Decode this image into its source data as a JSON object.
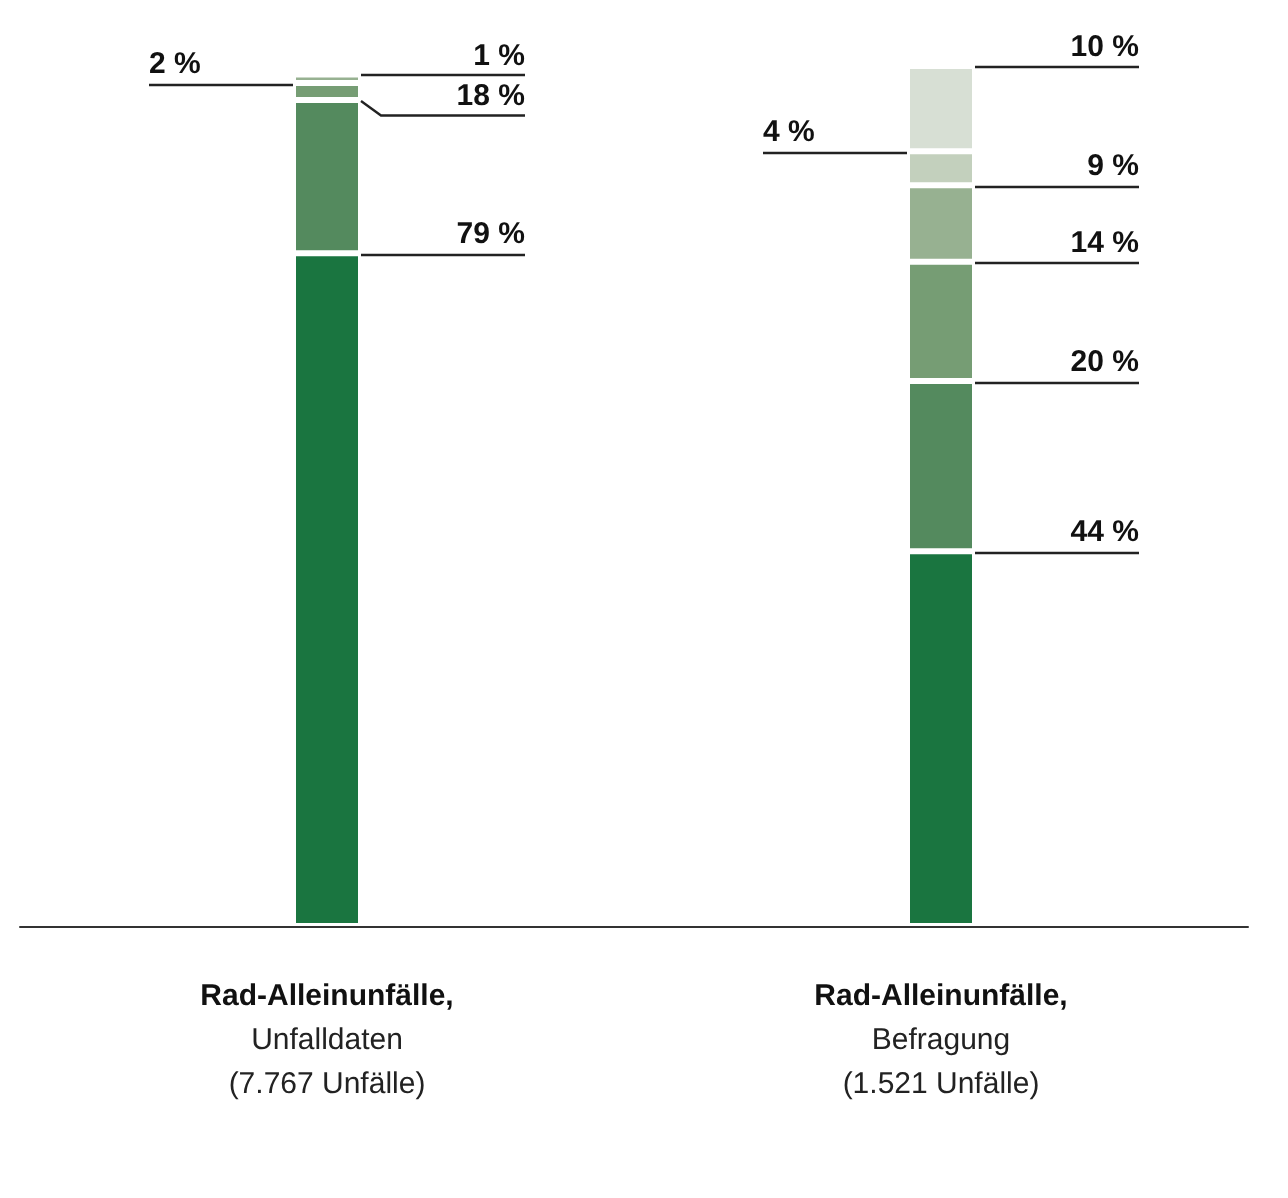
{
  "chart_data": {
    "type": "bar",
    "stacked": true,
    "categories": [
      "Rad-Alleinunfälle,\nUnfalldaten\n(7.767 Unfälle)",
      "Rad-Alleinunfälle,\nBefragung\n(1.521 Unfälle)"
    ],
    "series": [
      {
        "color": "#1a7540",
        "values": [
          79,
          44
        ],
        "value_labels": [
          "79 %",
          "44 %"
        ]
      },
      {
        "color": "#548a5e",
        "values": [
          18,
          20
        ],
        "value_labels": [
          "18 %",
          "20 %"
        ]
      },
      {
        "color": "#769d74",
        "values": [
          2,
          14
        ],
        "value_labels": [
          "2 %",
          "14 %"
        ]
      },
      {
        "color": "#97b191",
        "values": [
          1,
          9
        ],
        "value_labels": [
          "1 %",
          "9 %"
        ]
      },
      {
        "color": "#c3d0bd",
        "values": [
          null,
          4
        ],
        "value_labels": [
          null,
          "4 %"
        ]
      },
      {
        "color": "#d7dfd4",
        "values": [
          null,
          10
        ],
        "value_labels": [
          null,
          "10 %"
        ]
      }
    ]
  }
}
